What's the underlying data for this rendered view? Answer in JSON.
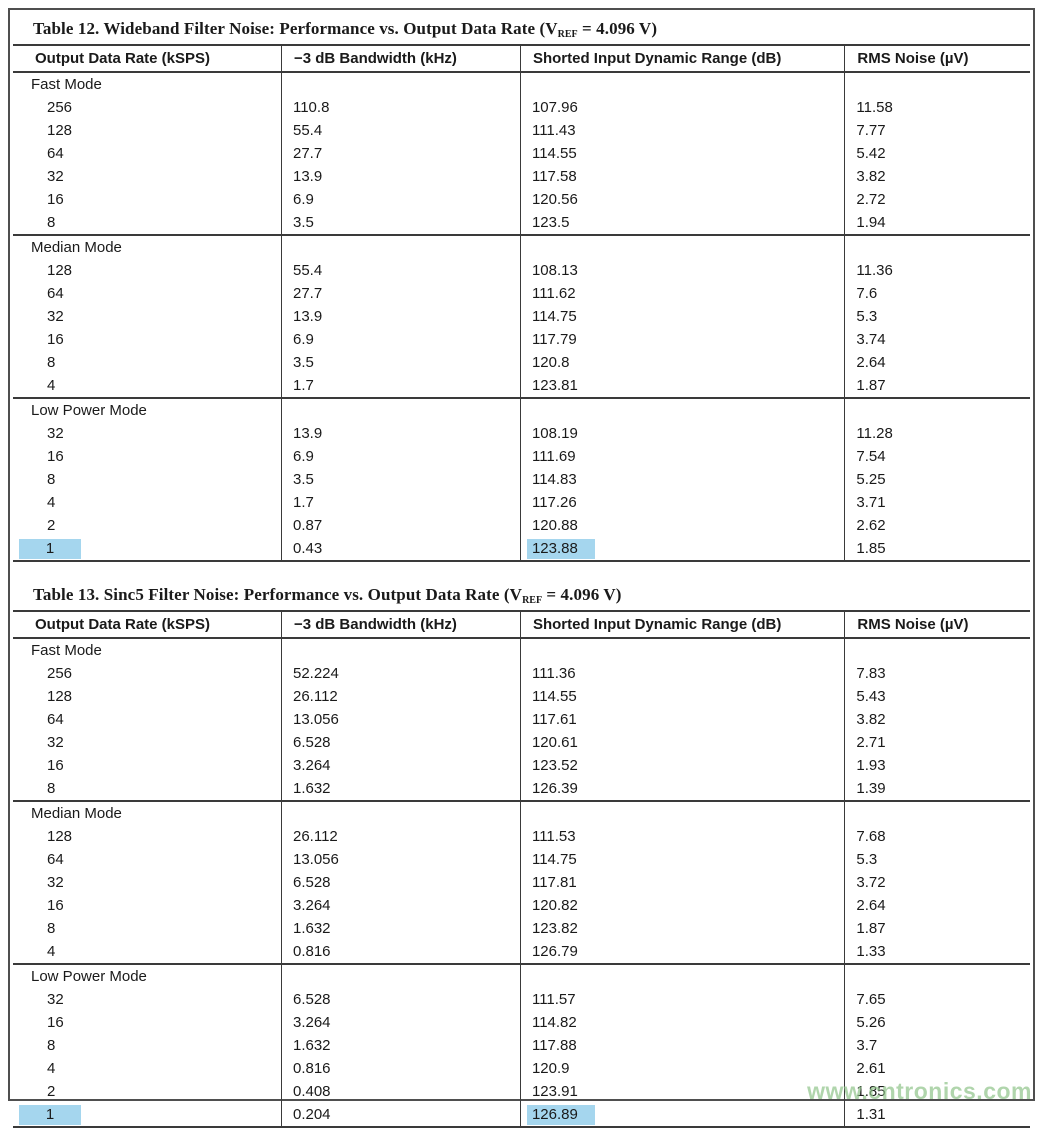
{
  "page": {
    "watermark": "www.cntronics.com"
  },
  "columns": [
    "Output Data Rate (kSPS)",
    "−3 dB Bandwidth (kHz)",
    "Shorted Input Dynamic Range (dB)",
    "RMS Noise (µV)"
  ],
  "highlight_color": "#a5d6ee",
  "tables": [
    {
      "caption": {
        "pre": "Table 12. Wideband Filter Noise: Performance vs. Output Data Rate (V",
        "sub": "REF",
        "post": " = 4.096 V)"
      },
      "sections": [
        {
          "mode": "Fast Mode",
          "rows": [
            {
              "cells": [
                "256",
                "110.8",
                "107.96",
                "11.58"
              ]
            },
            {
              "cells": [
                "128",
                "55.4",
                "111.43",
                "7.77"
              ]
            },
            {
              "cells": [
                "64",
                "27.7",
                "114.55",
                "5.42"
              ]
            },
            {
              "cells": [
                "32",
                "13.9",
                "117.58",
                "3.82"
              ]
            },
            {
              "cells": [
                "16",
                "6.9",
                "120.56",
                "2.72"
              ]
            },
            {
              "cells": [
                "8",
                "3.5",
                "123.5",
                "1.94"
              ]
            }
          ]
        },
        {
          "mode": "Median Mode",
          "rows": [
            {
              "cells": [
                "128",
                "55.4",
                "108.13",
                "11.36"
              ]
            },
            {
              "cells": [
                "64",
                "27.7",
                "111.62",
                "7.6"
              ]
            },
            {
              "cells": [
                "32",
                "13.9",
                "114.75",
                "5.3"
              ]
            },
            {
              "cells": [
                "16",
                "6.9",
                "117.79",
                "3.74"
              ]
            },
            {
              "cells": [
                "8",
                "3.5",
                "120.8",
                "2.64"
              ]
            },
            {
              "cells": [
                "4",
                "1.7",
                "123.81",
                "1.87"
              ]
            }
          ]
        },
        {
          "mode": "Low Power Mode",
          "rows": [
            {
              "cells": [
                "32",
                "13.9",
                "108.19",
                "11.28"
              ]
            },
            {
              "cells": [
                "16",
                "6.9",
                "111.69",
                "7.54"
              ]
            },
            {
              "cells": [
                "8",
                "3.5",
                "114.83",
                "5.25"
              ]
            },
            {
              "cells": [
                "4",
                "1.7",
                "117.26",
                "3.71"
              ]
            },
            {
              "cells": [
                "2",
                "0.87",
                "120.88",
                "2.62"
              ]
            },
            {
              "cells": [
                "1",
                "0.43",
                "123.88",
                "1.85"
              ],
              "hl": [
                0,
                2
              ]
            }
          ]
        }
      ]
    },
    {
      "caption": {
        "pre": "Table 13. Sinc5 Filter Noise: Performance vs. Output Data Rate (V",
        "sub": "REF",
        "post": " = 4.096 V)"
      },
      "sections": [
        {
          "mode": "Fast Mode",
          "rows": [
            {
              "cells": [
                "256",
                "52.224",
                "111.36",
                "7.83"
              ]
            },
            {
              "cells": [
                "128",
                "26.112",
                "114.55",
                "5.43"
              ]
            },
            {
              "cells": [
                "64",
                "13.056",
                "117.61",
                "3.82"
              ]
            },
            {
              "cells": [
                "32",
                "6.528",
                "120.61",
                "2.71"
              ]
            },
            {
              "cells": [
                "16",
                "3.264",
                "123.52",
                "1.93"
              ]
            },
            {
              "cells": [
                "8",
                "1.632",
                "126.39",
                "1.39"
              ]
            }
          ]
        },
        {
          "mode": "Median Mode",
          "rows": [
            {
              "cells": [
                "128",
                "26.112",
                "111.53",
                "7.68"
              ]
            },
            {
              "cells": [
                "64",
                "13.056",
                "114.75",
                "5.3"
              ]
            },
            {
              "cells": [
                "32",
                "6.528",
                "117.81",
                "3.72"
              ]
            },
            {
              "cells": [
                "16",
                "3.264",
                "120.82",
                "2.64"
              ]
            },
            {
              "cells": [
                "8",
                "1.632",
                "123.82",
                "1.87"
              ]
            },
            {
              "cells": [
                "4",
                "0.816",
                "126.79",
                "1.33"
              ]
            }
          ]
        },
        {
          "mode": "Low Power Mode",
          "rows": [
            {
              "cells": [
                "32",
                "6.528",
                "111.57",
                "7.65"
              ]
            },
            {
              "cells": [
                "16",
                "3.264",
                "114.82",
                "5.26"
              ]
            },
            {
              "cells": [
                "8",
                "1.632",
                "117.88",
                "3.7"
              ]
            },
            {
              "cells": [
                "4",
                "0.816",
                "120.9",
                "2.61"
              ]
            },
            {
              "cells": [
                "2",
                "0.408",
                "123.91",
                "1.85"
              ]
            },
            {
              "cells": [
                "1",
                "0.204",
                "126.89",
                "1.31"
              ],
              "hl": [
                0,
                2
              ]
            }
          ]
        }
      ]
    }
  ]
}
